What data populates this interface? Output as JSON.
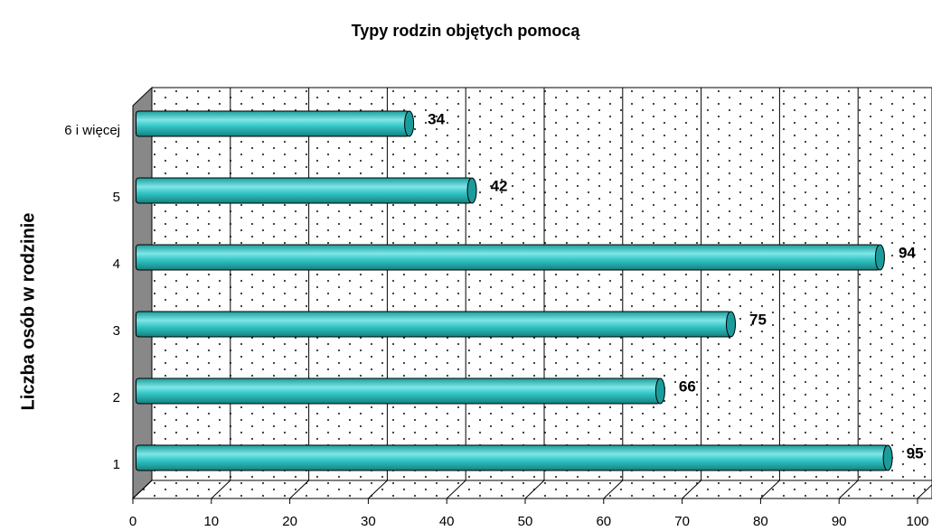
{
  "chart_data": {
    "type": "bar",
    "orientation": "horizontal",
    "title": "Typy rodzin objętych pomocą",
    "y_label": "Liczba osób w rodzinie",
    "categories": [
      "1",
      "2",
      "3",
      "4",
      "5",
      "6 i więcej"
    ],
    "values": [
      95,
      66,
      75,
      94,
      42,
      34
    ],
    "color": "#33c5c5",
    "xlim": [
      0,
      100
    ],
    "xticks": [
      0,
      10,
      20,
      30,
      40,
      50,
      60,
      70,
      80,
      90,
      100
    ],
    "grid": true
  }
}
